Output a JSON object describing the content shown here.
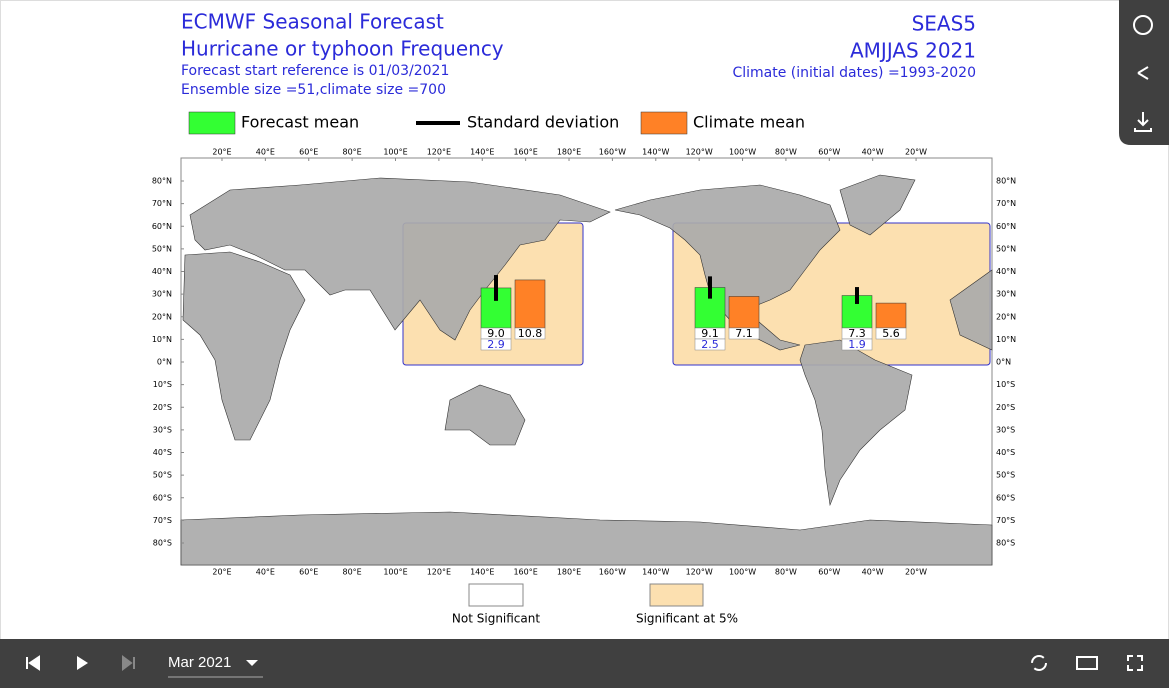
{
  "header": {
    "title_line1": "ECMWF Seasonal Forecast",
    "title_line2": "Hurricane or typhoon Frequency",
    "start_reference": "Forecast start reference is 01/03/2021",
    "ensemble": "Ensemble size =51,climate size =700",
    "system": "SEAS5",
    "period": "AMJJAS 2021",
    "climate": "Climate (initial dates) =1993-2020"
  },
  "legend": {
    "forecast_mean": "Forecast mean",
    "std_dev": "Standard deviation",
    "climate_mean": "Climate mean"
  },
  "map": {
    "lon_ticks": [
      {
        "value": 20,
        "label": "20°E"
      },
      {
        "value": 40,
        "label": "40°E"
      },
      {
        "value": 60,
        "label": "60°E"
      },
      {
        "value": 80,
        "label": "80°E"
      },
      {
        "value": 100,
        "label": "100°E"
      },
      {
        "value": 120,
        "label": "120°E"
      },
      {
        "value": 140,
        "label": "140°E"
      },
      {
        "value": 160,
        "label": "160°E"
      },
      {
        "value": 180,
        "label": "180°E"
      },
      {
        "value": 200,
        "label": "160°W"
      },
      {
        "value": 220,
        "label": "140°W"
      },
      {
        "value": 240,
        "label": "120°W"
      },
      {
        "value": 260,
        "label": "100°W"
      },
      {
        "value": 280,
        "label": "80°W"
      },
      {
        "value": 300,
        "label": "60°W"
      },
      {
        "value": 320,
        "label": "40°W"
      },
      {
        "value": 340,
        "label": "20°W"
      }
    ],
    "lat_ticks": [
      {
        "value": 80,
        "label": "80°N"
      },
      {
        "value": 70,
        "label": "70°N"
      },
      {
        "value": 60,
        "label": "60°N"
      },
      {
        "value": 50,
        "label": "50°N"
      },
      {
        "value": 40,
        "label": "40°N"
      },
      {
        "value": 30,
        "label": "30°N"
      },
      {
        "value": 20,
        "label": "20°N"
      },
      {
        "value": 10,
        "label": "10°N"
      },
      {
        "value": 0,
        "label": "0°N"
      },
      {
        "value": -10,
        "label": "10°S"
      },
      {
        "value": -20,
        "label": "20°S"
      },
      {
        "value": -30,
        "label": "30°S"
      },
      {
        "value": -40,
        "label": "40°S"
      },
      {
        "value": -50,
        "label": "50°S"
      },
      {
        "value": -60,
        "label": "60°S"
      },
      {
        "value": -70,
        "label": "70°S"
      },
      {
        "value": -80,
        "label": "80°S"
      }
    ],
    "basins": [
      {
        "forecast_mean": 9.0,
        "forecast_label": "9.0",
        "std_dev": 2.9,
        "climate_mean": 10.8
      },
      {
        "forecast_mean": 9.1,
        "std_dev": 2.5,
        "climate_mean": 7.1
      },
      {
        "forecast_mean": 7.3,
        "std_dev": 1.9,
        "climate_mean": 5.6
      }
    ]
  },
  "significance": {
    "not_significant": "Not Significant",
    "significant": "Significant at 5%"
  },
  "toolbar": {
    "date": "Mar 2021"
  }
}
